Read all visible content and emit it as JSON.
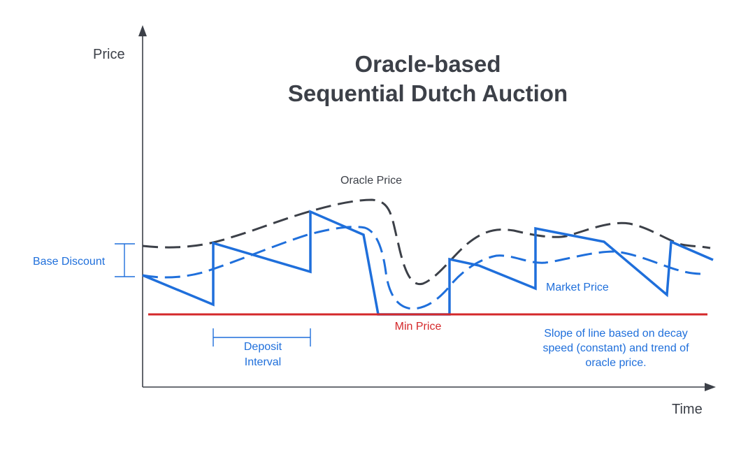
{
  "title": {
    "line1": "Oracle-based",
    "line2": "Sequential Dutch Auction"
  },
  "axes": {
    "y_label": "Price",
    "x_label": "Time"
  },
  "labels": {
    "oracle_price": "Oracle Price",
    "market_price": "Market Price",
    "min_price": "Min Price",
    "base_discount": "Base Discount",
    "deposit_interval_line1": "Deposit",
    "deposit_interval_line2": "Interval",
    "note_line1": "Slope of line based on decay",
    "note_line2": "speed (constant) and trend of",
    "note_line3": "oracle price."
  },
  "colors": {
    "axis": "#3c4048",
    "oracle_line": "#3c4048",
    "market_line": "#1f6fdb",
    "min_price_line": "#d4282a",
    "annotation_text": "#1f6fdb",
    "title_text": "#3c4048"
  }
}
